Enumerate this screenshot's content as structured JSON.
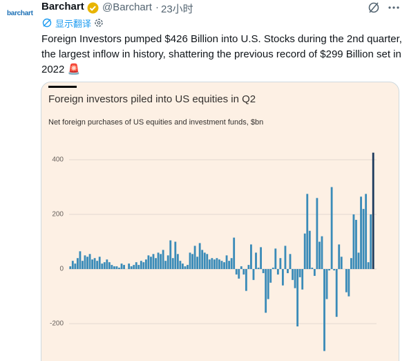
{
  "tweet": {
    "avatar": "barchart",
    "name": "Barchart",
    "handle": "@Barchart",
    "separator": "·",
    "time": "23小时",
    "translate": "显示翻译",
    "text": "Foreign Investors pumped $426 Billion into U.S. Stocks during the 2nd quarter, the largest inflow in history, shattering the previous record of $299 Billion set in 2022 🚨"
  },
  "chart_data": {
    "type": "bar",
    "title": "Foreign investors piled into US equities in Q2",
    "subtitle": "Net foreign purchases of US equities and investment funds, $bn",
    "values": [
      10,
      30,
      20,
      40,
      65,
      30,
      50,
      45,
      55,
      35,
      40,
      30,
      45,
      20,
      25,
      35,
      25,
      15,
      10,
      10,
      5,
      20,
      15,
      0,
      20,
      10,
      15,
      25,
      15,
      30,
      25,
      35,
      50,
      45,
      55,
      40,
      60,
      55,
      70,
      30,
      50,
      105,
      40,
      100,
      55,
      30,
      20,
      10,
      15,
      60,
      55,
      85,
      45,
      95,
      70,
      60,
      55,
      35,
      40,
      35,
      40,
      35,
      30,
      25,
      50,
      30,
      40,
      115,
      -20,
      -35,
      10,
      -20,
      -80,
      15,
      90,
      -40,
      60,
      5,
      80,
      -15,
      -160,
      -110,
      -50,
      5,
      75,
      -20,
      40,
      -60,
      85,
      -15,
      55,
      -40,
      -70,
      -210,
      -30,
      -75,
      130,
      275,
      140,
      5,
      -25,
      260,
      100,
      120,
      -300,
      -110,
      -5,
      300,
      -5,
      -175,
      90,
      45,
      0,
      -85,
      -100,
      40,
      200,
      180,
      60,
      265,
      220,
      275,
      25,
      200,
      426
    ],
    "color": "#3a8bb8",
    "last_color": "#1d3a5c",
    "background": "#fdf0e4",
    "ylim": [
      -330,
      440
    ],
    "yticks": [
      -200,
      0,
      200,
      400
    ],
    "grid": true
  }
}
